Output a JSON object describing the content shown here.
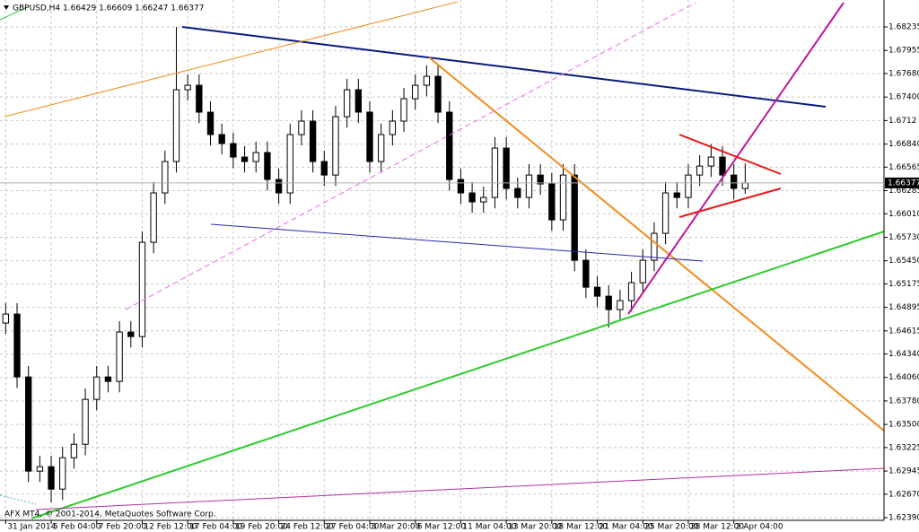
{
  "chart_data": {
    "type": "candlestick",
    "title": "GBPUSD,H4  1.66429 1.66609 1.66247 1.66377",
    "footer": "AFX MT4, © 2001-2014, MetaQuotes Software Corp.",
    "last_price": 1.66377,
    "grid": true,
    "up_color": "#ffffff",
    "down_color": "#000000",
    "candles": {
      "open": [
        1.64708,
        1.64815,
        1.64066,
        1.62944,
        1.62997,
        1.6273,
        1.63104,
        1.63264,
        1.63799,
        1.64066,
        1.64013,
        1.64601,
        1.64547,
        1.6567,
        1.66258,
        1.66632,
        1.67487,
        1.6754,
        1.6722,
        1.66953,
        1.66846,
        1.66685,
        1.66632,
        1.66739,
        1.66418,
        1.66258,
        1.66953,
        1.67113,
        1.66632,
        1.66471,
        1.67166,
        1.67487,
        1.6722,
        1.66632,
        1.66953,
        1.67113,
        1.6738,
        1.6754,
        1.67647,
        1.6722,
        1.66418,
        1.66258,
        1.66151,
        1.66204,
        1.66792,
        1.66311,
        1.66204,
        1.66471,
        1.66365,
        1.65937,
        1.66471,
        1.65456,
        1.65135,
        1.65028,
        1.64868,
        1.64975,
        1.65189,
        1.65456,
        1.65777,
        1.66258,
        1.66204,
        1.66471,
        1.66578,
        1.66685,
        1.66471,
        1.66311
      ],
      "high": [
        1.64945,
        1.64945,
        1.64196,
        1.63127,
        1.63127,
        1.63234,
        1.63394,
        1.63929,
        1.64196,
        1.64196,
        1.64731,
        1.64731,
        1.658,
        1.66388,
        1.66762,
        1.68235,
        1.6767,
        1.6767,
        1.6735,
        1.67083,
        1.66976,
        1.66815,
        1.66869,
        1.66869,
        1.66548,
        1.67083,
        1.67243,
        1.67243,
        1.66762,
        1.67296,
        1.67617,
        1.67617,
        1.6735,
        1.67083,
        1.67243,
        1.6751,
        1.6767,
        1.67777,
        1.67777,
        1.6735,
        1.66548,
        1.66388,
        1.66334,
        1.66922,
        1.66922,
        1.66441,
        1.66601,
        1.66601,
        1.66495,
        1.66601,
        1.66601,
        1.65586,
        1.65265,
        1.65158,
        1.65105,
        1.65319,
        1.65586,
        1.65907,
        1.66388,
        1.66388,
        1.66601,
        1.66708,
        1.6684,
        1.66815,
        1.66601,
        1.66609
      ],
      "low": [
        1.64578,
        1.63936,
        1.62814,
        1.62814,
        1.6257,
        1.626,
        1.62974,
        1.63134,
        1.63669,
        1.63883,
        1.63883,
        1.64417,
        1.64417,
        1.6554,
        1.66128,
        1.66502,
        1.67357,
        1.6709,
        1.66823,
        1.66716,
        1.66555,
        1.66502,
        1.66502,
        1.66288,
        1.66128,
        1.66128,
        1.66823,
        1.66502,
        1.66341,
        1.66341,
        1.67036,
        1.6709,
        1.66502,
        1.66502,
        1.66823,
        1.66983,
        1.6725,
        1.6741,
        1.6709,
        1.66288,
        1.66128,
        1.66021,
        1.66021,
        1.66074,
        1.66181,
        1.66074,
        1.66074,
        1.66235,
        1.65807,
        1.65807,
        1.65326,
        1.65005,
        1.64898,
        1.64654,
        1.64738,
        1.64845,
        1.65059,
        1.65326,
        1.65647,
        1.66074,
        1.66074,
        1.66341,
        1.66448,
        1.66341,
        1.66181,
        1.66247
      ],
      "close": [
        1.64815,
        1.64066,
        1.62944,
        1.62997,
        1.6273,
        1.63104,
        1.63264,
        1.63799,
        1.64066,
        1.64013,
        1.64601,
        1.64547,
        1.6567,
        1.66258,
        1.66632,
        1.67487,
        1.6754,
        1.6722,
        1.66953,
        1.66846,
        1.66685,
        1.66632,
        1.66739,
        1.66418,
        1.66258,
        1.66953,
        1.67113,
        1.66632,
        1.66471,
        1.67166,
        1.67487,
        1.6722,
        1.66632,
        1.66953,
        1.67113,
        1.6738,
        1.6754,
        1.67647,
        1.6722,
        1.66418,
        1.66258,
        1.66151,
        1.66204,
        1.66792,
        1.66311,
        1.66204,
        1.66471,
        1.66365,
        1.65937,
        1.66471,
        1.65456,
        1.65135,
        1.65028,
        1.64868,
        1.64975,
        1.65189,
        1.65456,
        1.65777,
        1.66258,
        1.66204,
        1.66471,
        1.66578,
        1.66685,
        1.66471,
        1.66311,
        1.66377
      ]
    },
    "xlim": [
      -0.5,
      77.2
    ],
    "xticks": [
      {
        "value": 0,
        "label": "31 Jan 2014"
      },
      {
        "value": 4,
        "label": "5 Feb 04:00"
      },
      {
        "value": 8,
        "label": "7 Feb 20:00"
      },
      {
        "value": 12,
        "label": "12 Feb 12:00"
      },
      {
        "value": 16,
        "label": "17 Feb 04:00"
      },
      {
        "value": 20,
        "label": "19 Feb 20:00"
      },
      {
        "value": 24,
        "label": "24 Feb 12:00"
      },
      {
        "value": 28,
        "label": "27 Feb 04:00"
      },
      {
        "value": 32,
        "label": "3 Mar 20:00"
      },
      {
        "value": 36,
        "label": "6 Mar 12:00"
      },
      {
        "value": 40,
        "label": "11 Mar 04:00"
      },
      {
        "value": 44,
        "label": "13 Mar 20:00"
      },
      {
        "value": 48,
        "label": "18 Mar 12:00"
      },
      {
        "value": 52,
        "label": "21 Mar 04:00"
      },
      {
        "value": 56,
        "label": "25 Mar 20:00"
      },
      {
        "value": 60,
        "label": "28 Mar 12:00"
      },
      {
        "value": 64,
        "label": "2 Apr 04:00"
      }
    ],
    "ylim": [
      1.62358,
      1.68556
    ],
    "yticks": [
      1.68235,
      1.67955,
      {
        "value": 1.6768,
        "label": "1.67680"
      },
      {
        "value": 1.674,
        "label": "1.67400"
      },
      1.6712,
      {
        "value": 1.6684,
        "label": "1.66840"
      },
      1.66565,
      1.66285,
      {
        "value": 1.6601,
        "label": "1.66010"
      },
      {
        "value": 1.6573,
        "label": "1.65730"
      },
      {
        "value": 1.6545,
        "label": "1.65450"
      },
      1.65175,
      1.64895,
      1.64615,
      {
        "value": 1.6434,
        "label": "1.64340"
      },
      {
        "value": 1.6406,
        "label": "1.64060"
      },
      {
        "value": 1.6378,
        "label": "1.63780"
      },
      {
        "value": 1.635,
        "label": "1.63500"
      },
      1.63225,
      1.62945,
      {
        "value": 1.6267,
        "label": "1.62670"
      },
      {
        "value": 1.6239,
        "label": "1.62390"
      }
    ]
  }
}
